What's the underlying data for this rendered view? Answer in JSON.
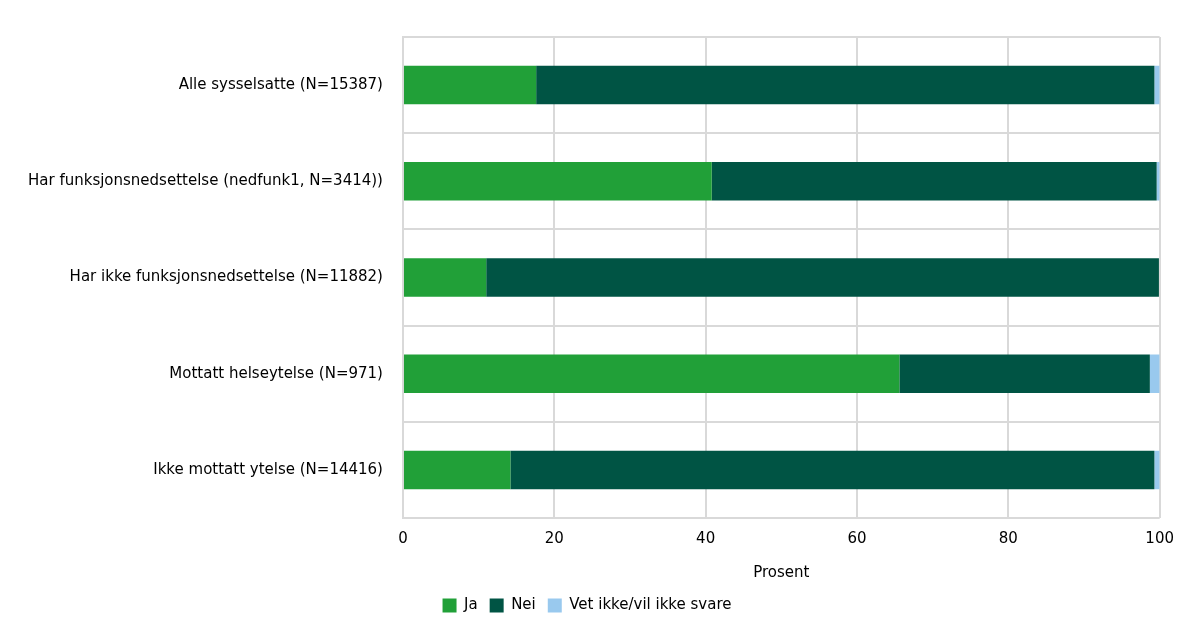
{
  "chart_data": {
    "type": "bar",
    "orientation": "horizontal",
    "stacked": true,
    "categories": [
      "Alle sysselsatte (N=15387)",
      "Har funksjonsnedsettelse (nedfunk1, N=3414))",
      "Har ikke funksjonsnedsettelse (N=11882)",
      "Mottatt helseytelse (N=971)",
      "Ikke mottatt ytelse (N=14416)"
    ],
    "series": [
      {
        "name": "Ja",
        "color": "#21a038",
        "values": [
          17.6,
          40.8,
          11.0,
          65.6,
          14.2
        ]
      },
      {
        "name": "Nei",
        "color": "#005444",
        "values": [
          81.7,
          58.8,
          88.9,
          33.1,
          85.1
        ]
      },
      {
        "name": "Vet ikke/vil ikke svare",
        "color": "#99c9ee",
        "values": [
          0.7,
          0.4,
          null,
          1.3,
          0.7
        ]
      }
    ],
    "xlabel": "Prosent",
    "xlim": [
      0,
      100
    ],
    "xticks": [
      0,
      20,
      40,
      60,
      80,
      100
    ],
    "grid": true,
    "legend": "bottom"
  }
}
